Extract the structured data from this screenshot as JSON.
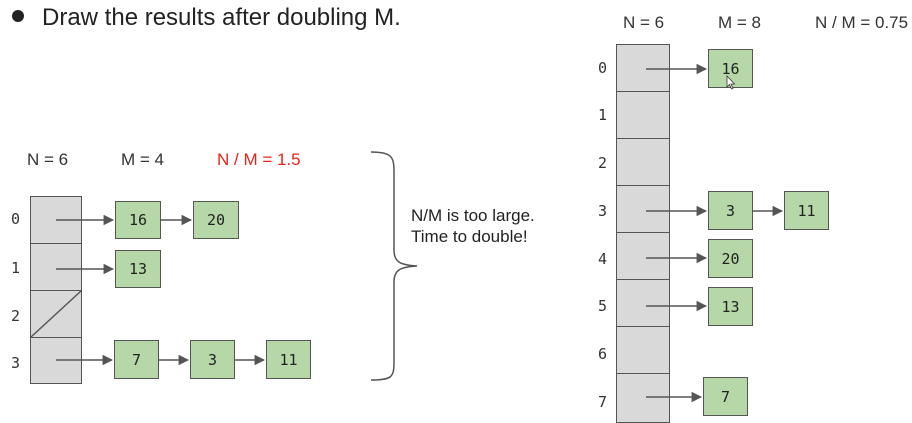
{
  "bullet": "Draw the results after doubling M.",
  "left": {
    "n_label": "N = 6",
    "m_label": "M = 4",
    "ratio_label": "N / M = 1.5",
    "indices": [
      "0",
      "1",
      "2",
      "3"
    ],
    "nodes": {
      "r0a": "16",
      "r0b": "20",
      "r1a": "13",
      "r3a": "7",
      "r3b": "3",
      "r3c": "11"
    }
  },
  "note": [
    "N/M is too large.",
    "Time to double!"
  ],
  "right": {
    "n_label": "N = 6",
    "m_label": "M = 8",
    "ratio_label": "N / M = 0.75",
    "indices": [
      "0",
      "1",
      "2",
      "3",
      "4",
      "5",
      "6",
      "7"
    ],
    "nodes": {
      "r0a": "16",
      "r3a": "3",
      "r3b": "11",
      "r4a": "20",
      "r5a": "13",
      "r7a": "7"
    }
  },
  "colors": {
    "bucket_fill": "#d9d9d9",
    "node_fill": "#b6d7a8",
    "ratio_red": "#e8231b"
  }
}
